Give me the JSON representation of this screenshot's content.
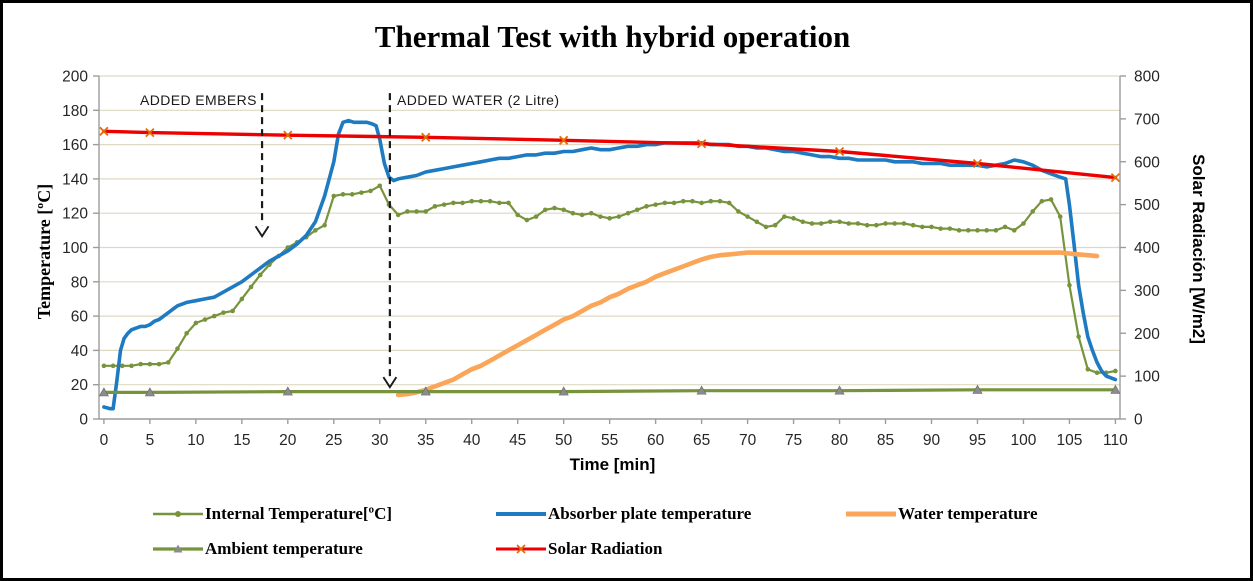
{
  "chart_data": {
    "type": "line",
    "title": "Thermal Test with hybrid operation",
    "x_axis": {
      "label": "Time [min]",
      "min": 0,
      "max": 110,
      "step": 5
    },
    "y_axis_left": {
      "label": "Temperature [ºC]",
      "min": 0,
      "max": 200,
      "step": 20
    },
    "y_axis_right": {
      "label": "Solar Radiación [W/m2]",
      "min": 0,
      "max": 800,
      "step": 100
    },
    "grid_color": "#DDD9C3",
    "axis_color": "#9C9C9C",
    "tick_text_color": "#262626",
    "annotation_color": "#1a1a1a",
    "legend_position": "bottom",
    "grid": true,
    "annotations": [
      {
        "label": "ADDED EMBERS",
        "time": 17.2,
        "from_temp": 190,
        "to_temp": 106
      },
      {
        "label": "ADDED WATER (2 Litre)",
        "time": 31.1,
        "from_temp": 190,
        "to_temp": 18
      }
    ],
    "series": [
      {
        "name": "Internal Temperature[ºC]",
        "color": "#77933C",
        "width": 2.2,
        "axis": "left",
        "marker": {
          "type": "circle",
          "color": "#77933C"
        },
        "start_t": 0,
        "dt": 1,
        "values": [
          31,
          31,
          31,
          31,
          32,
          32,
          32,
          33,
          41,
          50,
          56,
          58,
          60,
          62,
          63,
          70,
          77,
          84,
          90,
          95,
          100,
          103,
          106,
          110,
          113,
          130,
          131,
          131,
          132,
          133,
          136,
          125,
          119,
          121,
          121,
          121,
          124,
          125,
          126,
          126,
          127,
          127,
          127,
          126,
          126,
          119,
          116,
          118,
          122,
          123,
          122,
          120,
          119,
          120,
          118,
          117,
          118,
          120,
          122,
          124,
          125,
          126,
          126,
          127,
          127,
          126,
          127,
          127,
          126,
          121,
          118,
          115,
          112,
          113,
          118,
          117,
          115,
          114,
          114,
          115,
          115,
          114,
          114,
          113,
          113,
          114,
          114,
          114,
          113,
          112,
          112,
          111,
          111,
          110,
          110,
          110,
          110,
          110,
          112,
          110,
          114,
          121,
          127,
          128,
          118,
          78,
          48,
          29,
          27,
          27,
          28
        ]
      },
      {
        "name": "Absorber plate temperature",
        "color": "#1E7AC1",
        "width": 3.6,
        "axis": "left",
        "points": [
          [
            0,
            7
          ],
          [
            0.7,
            6
          ],
          [
            1,
            6
          ],
          [
            1.4,
            22
          ],
          [
            1.8,
            40
          ],
          [
            2.2,
            47
          ],
          [
            2.6,
            50
          ],
          [
            3,
            52
          ],
          [
            3.5,
            53
          ],
          [
            4,
            54
          ],
          [
            4.5,
            54
          ],
          [
            5,
            55
          ],
          [
            5.5,
            57
          ],
          [
            6,
            58
          ],
          [
            6.5,
            60
          ],
          [
            7,
            62
          ],
          [
            7.5,
            64
          ],
          [
            8,
            66
          ],
          [
            9,
            68
          ],
          [
            10,
            69
          ],
          [
            11,
            70
          ],
          [
            12,
            71
          ],
          [
            13,
            74
          ],
          [
            14,
            77
          ],
          [
            15,
            80
          ],
          [
            16,
            84
          ],
          [
            17,
            88
          ],
          [
            18,
            92
          ],
          [
            19,
            95
          ],
          [
            20,
            98
          ],
          [
            21,
            102
          ],
          [
            22,
            107
          ],
          [
            23,
            115
          ],
          [
            24,
            130
          ],
          [
            25,
            150
          ],
          [
            25.5,
            166
          ],
          [
            26,
            173
          ],
          [
            26.6,
            174
          ],
          [
            27.2,
            173
          ],
          [
            28,
            173
          ],
          [
            28.6,
            173
          ],
          [
            29.2,
            172
          ],
          [
            29.6,
            171
          ],
          [
            30,
            163
          ],
          [
            30.5,
            149
          ],
          [
            31,
            141
          ],
          [
            31.5,
            139
          ],
          [
            32,
            140
          ],
          [
            33,
            141
          ],
          [
            34,
            142
          ],
          [
            35,
            144
          ],
          [
            36,
            145
          ],
          [
            37,
            146
          ],
          [
            38,
            147
          ],
          [
            39,
            148
          ],
          [
            40,
            149
          ],
          [
            41,
            150
          ],
          [
            42,
            151
          ],
          [
            43,
            152
          ],
          [
            44,
            152
          ],
          [
            45,
            153
          ],
          [
            46,
            154
          ],
          [
            47,
            154
          ],
          [
            48,
            155
          ],
          [
            49,
            155
          ],
          [
            50,
            156
          ],
          [
            51,
            156
          ],
          [
            52,
            157
          ],
          [
            53,
            158
          ],
          [
            54,
            157
          ],
          [
            55,
            157
          ],
          [
            56,
            158
          ],
          [
            57,
            159
          ],
          [
            58,
            159
          ],
          [
            59,
            160
          ],
          [
            60,
            160
          ],
          [
            61,
            161
          ],
          [
            62,
            161
          ],
          [
            63,
            161
          ],
          [
            64,
            161
          ],
          [
            65,
            161
          ],
          [
            66,
            160
          ],
          [
            67,
            160
          ],
          [
            68,
            160
          ],
          [
            69,
            159
          ],
          [
            70,
            159
          ],
          [
            71,
            158
          ],
          [
            72,
            158
          ],
          [
            73,
            157
          ],
          [
            74,
            156
          ],
          [
            75,
            156
          ],
          [
            76,
            155
          ],
          [
            77,
            154
          ],
          [
            78,
            153
          ],
          [
            79,
            153
          ],
          [
            80,
            152
          ],
          [
            81,
            152
          ],
          [
            82,
            151
          ],
          [
            83,
            151
          ],
          [
            84,
            151
          ],
          [
            85,
            151
          ],
          [
            86,
            150
          ],
          [
            87,
            150
          ],
          [
            88,
            150
          ],
          [
            89,
            149
          ],
          [
            90,
            149
          ],
          [
            91,
            149
          ],
          [
            92,
            148
          ],
          [
            93,
            148
          ],
          [
            94,
            148
          ],
          [
            95,
            148
          ],
          [
            96,
            147
          ],
          [
            97,
            148
          ],
          [
            98,
            149
          ],
          [
            99,
            151
          ],
          [
            100,
            150
          ],
          [
            101,
            148
          ],
          [
            102,
            145
          ],
          [
            103,
            143
          ],
          [
            104,
            141
          ],
          [
            104.6,
            140
          ],
          [
            105,
            125
          ],
          [
            105.5,
            102
          ],
          [
            106,
            78
          ],
          [
            106.5,
            62
          ],
          [
            107,
            48
          ],
          [
            107.5,
            40
          ],
          [
            108,
            33
          ],
          [
            108.5,
            28
          ],
          [
            109,
            25
          ],
          [
            109.5,
            24
          ],
          [
            110,
            23
          ]
        ]
      },
      {
        "name": "Water temperature",
        "color": "#FAA558",
        "width": 4.6,
        "axis": "left",
        "start_t": 32,
        "dt": 1,
        "values": [
          14,
          14.5,
          15.5,
          17,
          19,
          21,
          23,
          26,
          29,
          31,
          34,
          37,
          40,
          43,
          46,
          49,
          52,
          55,
          58,
          60,
          63,
          66,
          68,
          71,
          73,
          76,
          78,
          80,
          83,
          85,
          87,
          89,
          91,
          93,
          94.5,
          95.5,
          96,
          96.5,
          97,
          97,
          97,
          97,
          97,
          97,
          97,
          97,
          97,
          97,
          97,
          97,
          97,
          97,
          97,
          97,
          97,
          97,
          97,
          97,
          97,
          97,
          97,
          97,
          97,
          97,
          97,
          97,
          97,
          97,
          97,
          97,
          97,
          97,
          97,
          96.5,
          96,
          95.5,
          95
        ]
      },
      {
        "name": "Ambient temperature",
        "color": "#77933C",
        "width": 3.2,
        "axis": "left",
        "marker": {
          "type": "triangle",
          "color": "#8C8C8C"
        },
        "times": [
          0,
          5,
          20,
          35,
          50,
          65,
          80,
          95,
          110
        ],
        "values": [
          15.5,
          15.5,
          16,
          16,
          16,
          16.5,
          16.5,
          17,
          17
        ]
      },
      {
        "name": "Solar Radiation",
        "color": "#EC0000",
        "width": 3.4,
        "axis": "right",
        "marker": {
          "type": "x",
          "color": "#E36C0A"
        },
        "times": [
          0,
          5,
          20,
          35,
          50,
          65,
          80,
          95,
          110
        ],
        "values": [
          671,
          668,
          662,
          657,
          650,
          642,
          624,
          596,
          563
        ]
      }
    ]
  }
}
